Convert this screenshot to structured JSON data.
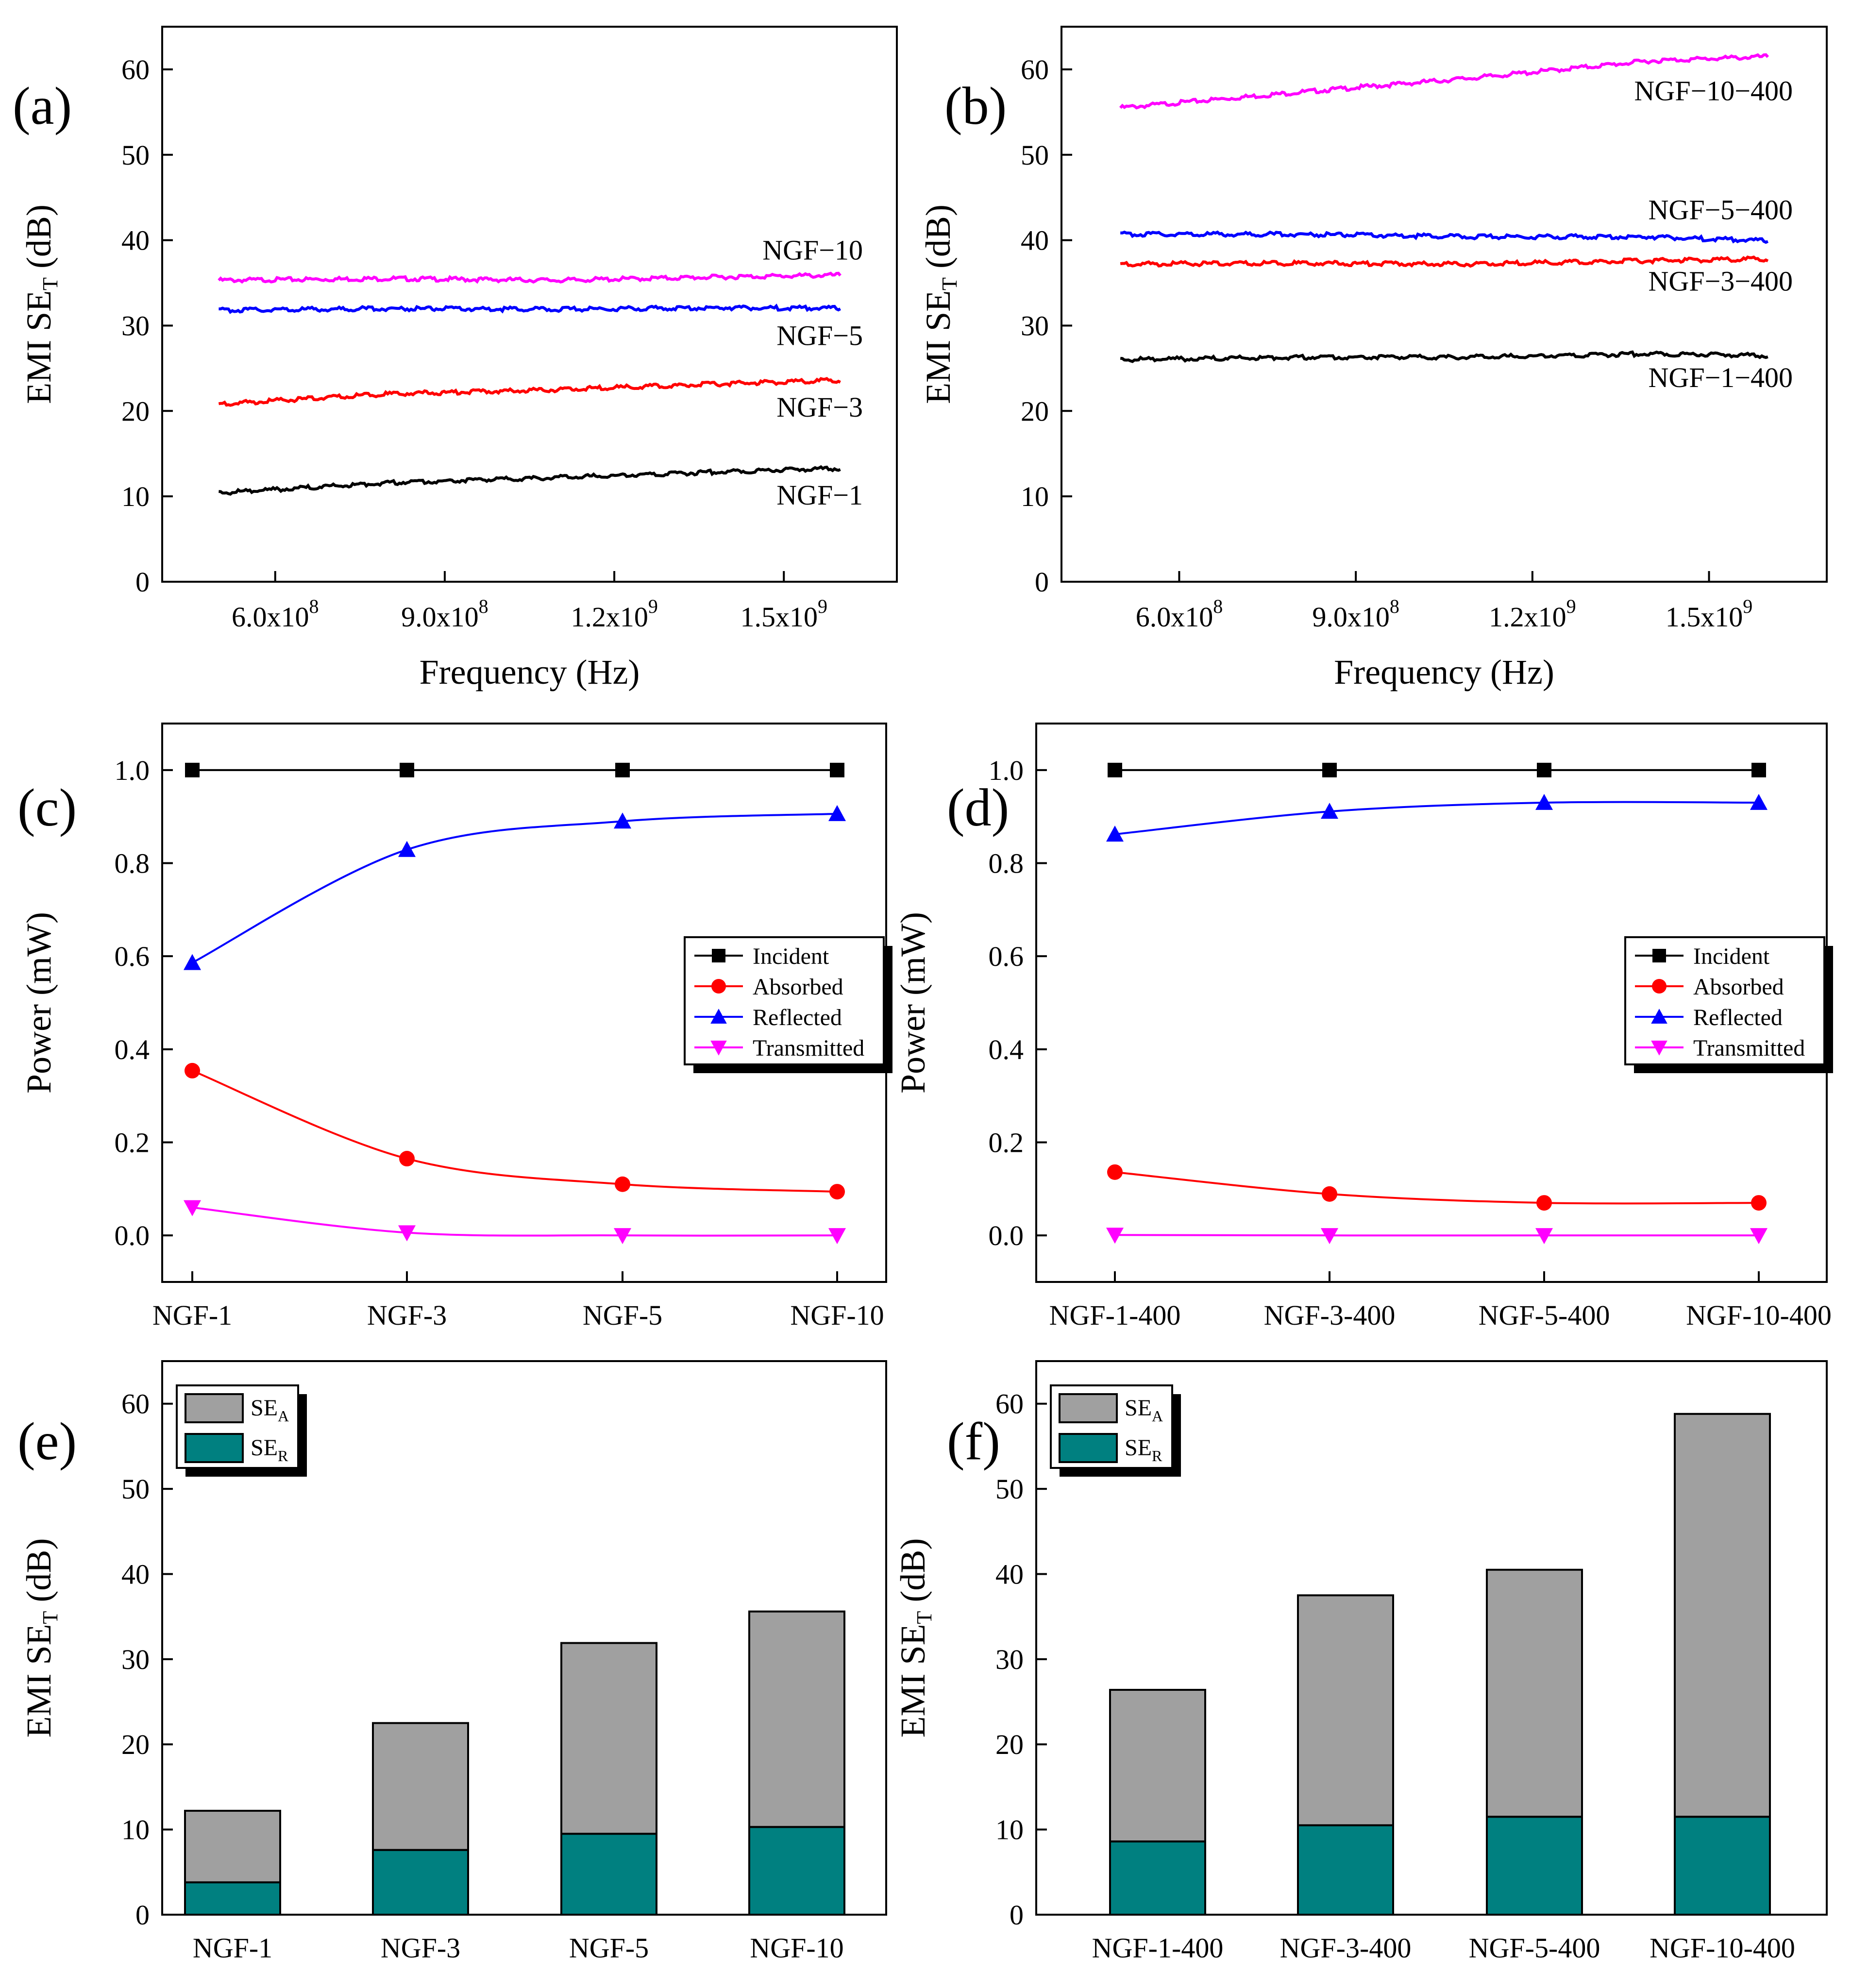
{
  "chart_data": [
    {
      "panel": "(a)",
      "type": "line",
      "xlabel": "Frequency (Hz)",
      "ylabel": "EMI SE",
      "ylabel_sub": "T",
      "ylabel_suffix": " (dB)",
      "xlim": [
        400000000,
        1700000000
      ],
      "ylim": [
        0,
        65
      ],
      "xticks": [
        600000000,
        900000000,
        1200000000,
        1500000000
      ],
      "xtick_mantissa": [
        "6.0x10",
        "9.0x10",
        "1.2x10",
        "1.5x10"
      ],
      "xtick_exponent": [
        "8",
        "8",
        "9",
        "9"
      ],
      "yticks": [
        0,
        10,
        20,
        30,
        40,
        50,
        60
      ],
      "series": [
        {
          "name": "NGF−10",
          "color": "#ff00ff",
          "x": [
            500000000,
            800000000,
            1100000000,
            1400000000,
            1600000000
          ],
          "values": [
            35.3,
            35.5,
            35.3,
            35.7,
            35.9
          ]
        },
        {
          "name": "NGF−5",
          "color": "#0000ff",
          "x": [
            500000000,
            800000000,
            1100000000,
            1400000000,
            1600000000
          ],
          "values": [
            31.8,
            32.0,
            31.9,
            32.1,
            32.0
          ]
        },
        {
          "name": "NGF−3",
          "color": "#ff0000",
          "x": [
            500000000,
            800000000,
            1100000000,
            1400000000,
            1600000000
          ],
          "values": [
            20.8,
            22.0,
            22.5,
            23.2,
            23.6
          ]
        },
        {
          "name": "NGF−1",
          "color": "#000000",
          "x": [
            500000000,
            800000000,
            1100000000,
            1400000000,
            1600000000
          ],
          "values": [
            10.4,
            11.6,
            12.2,
            12.9,
            13.3
          ]
        }
      ]
    },
    {
      "panel": "(b)",
      "type": "line",
      "xlabel": "Frequency (Hz)",
      "ylabel": "EMI SE",
      "ylabel_sub": "T",
      "ylabel_suffix": " (dB)",
      "xlim": [
        400000000,
        1700000000
      ],
      "ylim": [
        0,
        65
      ],
      "xticks": [
        600000000,
        900000000,
        1200000000,
        1500000000
      ],
      "xtick_mantissa": [
        "6.0x10",
        "9.0x10",
        "1.2x10",
        "1.5x10"
      ],
      "xtick_exponent": [
        "8",
        "8",
        "9",
        "9"
      ],
      "yticks": [
        0,
        10,
        20,
        30,
        40,
        50,
        60
      ],
      "series": [
        {
          "name": "NGF−10−400",
          "color": "#ff00ff",
          "x": [
            500000000,
            800000000,
            1100000000,
            1400000000,
            1600000000
          ],
          "values": [
            55.5,
            57.3,
            59.0,
            61.0,
            61.5
          ]
        },
        {
          "name": "NGF−5−400",
          "color": "#0000ff",
          "x": [
            500000000,
            800000000,
            1100000000,
            1400000000,
            1600000000
          ],
          "values": [
            40.7,
            40.7,
            40.4,
            40.4,
            39.9
          ]
        },
        {
          "name": "NGF−3−400",
          "color": "#ff0000",
          "x": [
            500000000,
            800000000,
            1100000000,
            1400000000,
            1600000000
          ],
          "values": [
            37.2,
            37.3,
            37.2,
            37.6,
            37.8
          ]
        },
        {
          "name": "NGF−1−400",
          "color": "#000000",
          "x": [
            500000000,
            800000000,
            1100000000,
            1400000000,
            1600000000
          ],
          "values": [
            26.0,
            26.3,
            26.3,
            26.7,
            26.5
          ]
        }
      ]
    },
    {
      "panel": "(c)",
      "type": "line",
      "xlabel": "",
      "ylabel": "Power (mW)",
      "ylim": [
        -0.1,
        1.1
      ],
      "yticks": [
        0.0,
        0.2,
        0.4,
        0.6,
        0.8,
        1.0
      ],
      "categories": [
        "NGF-1",
        "NGF-3",
        "NGF-5",
        "NGF-10"
      ],
      "legend": "center-right",
      "series": [
        {
          "name": "Incident",
          "color": "#000000",
          "marker": "square",
          "values": [
            1.0,
            1.0,
            1.0,
            1.0
          ]
        },
        {
          "name": "Absorbed",
          "color": "#ff0000",
          "marker": "circle",
          "values": [
            0.354,
            0.165,
            0.11,
            0.094
          ]
        },
        {
          "name": "Reflected",
          "color": "#0000ff",
          "marker": "triangle-up",
          "values": [
            0.586,
            0.829,
            0.89,
            0.906
          ]
        },
        {
          "name": "Transmitted",
          "color": "#ff00ff",
          "marker": "triangle-down",
          "values": [
            0.06,
            0.006,
            0.0,
            0.0
          ]
        }
      ]
    },
    {
      "panel": "(d)",
      "type": "line",
      "xlabel": "",
      "ylabel": "Power (mW)",
      "ylim": [
        -0.1,
        1.1
      ],
      "yticks": [
        0.0,
        0.2,
        0.4,
        0.6,
        0.8,
        1.0
      ],
      "categories": [
        "NGF-1-400",
        "NGF-3-400",
        "NGF-5-400",
        "NGF-10-400"
      ],
      "legend": "center-right",
      "series": [
        {
          "name": "Incident",
          "color": "#000000",
          "marker": "square",
          "values": [
            1.0,
            1.0,
            1.0,
            1.0
          ]
        },
        {
          "name": "Absorbed",
          "color": "#ff0000",
          "marker": "circle",
          "values": [
            0.136,
            0.089,
            0.07,
            0.07
          ]
        },
        {
          "name": "Reflected",
          "color": "#0000ff",
          "marker": "triangle-up",
          "values": [
            0.862,
            0.911,
            0.93,
            0.93
          ]
        },
        {
          "name": "Transmitted",
          "color": "#ff00ff",
          "marker": "triangle-down",
          "values": [
            0.001,
            0.0,
            0.0,
            0.0
          ]
        }
      ]
    },
    {
      "panel": "(e)",
      "type": "bar",
      "stacked": true,
      "ylabel": "EMI SE",
      "ylabel_sub": "T",
      "ylabel_suffix": " (dB)",
      "ylim": [
        0,
        65
      ],
      "yticks": [
        0,
        10,
        20,
        30,
        40,
        50,
        60
      ],
      "categories": [
        "NGF-1",
        "NGF-3",
        "NGF-5",
        "NGF-10"
      ],
      "legend": "top-left",
      "series": [
        {
          "name": "SE",
          "sub": "R",
          "color": "#008080",
          "values": [
            3.8,
            7.6,
            9.5,
            10.3
          ]
        },
        {
          "name": "SE",
          "sub": "A",
          "color": "#a0a0a0",
          "values": [
            8.4,
            14.9,
            22.4,
            25.3
          ]
        }
      ],
      "totals": [
        12.2,
        22.5,
        31.9,
        35.6
      ]
    },
    {
      "panel": "(f)",
      "type": "bar",
      "stacked": true,
      "ylabel": "EMI SE",
      "ylabel_sub": "T",
      "ylabel_suffix": " (dB)",
      "ylim": [
        0,
        65
      ],
      "yticks": [
        0,
        10,
        20,
        30,
        40,
        50,
        60
      ],
      "categories": [
        "NGF-1-400",
        "NGF-3-400",
        "NGF-5-400",
        "NGF-10-400"
      ],
      "legend": "top-left",
      "series": [
        {
          "name": "SE",
          "sub": "R",
          "color": "#008080",
          "values": [
            8.6,
            10.5,
            11.5,
            11.5
          ]
        },
        {
          "name": "SE",
          "sub": "A",
          "color": "#a0a0a0",
          "values": [
            17.8,
            27.0,
            29.0,
            47.3
          ]
        }
      ],
      "totals": [
        26.4,
        37.5,
        40.5,
        58.8
      ]
    }
  ]
}
